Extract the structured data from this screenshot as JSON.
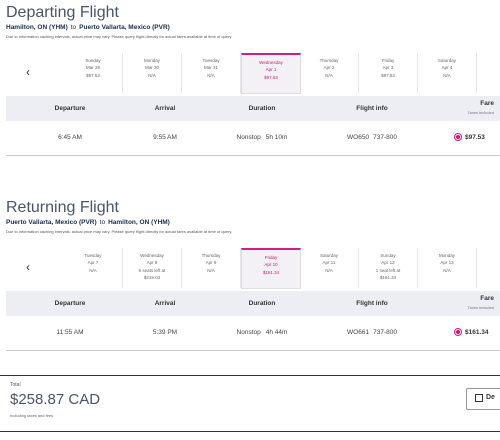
{
  "departing": {
    "title": "Departing Flight",
    "route": {
      "from": "Hamilton, ON (YHM)",
      "to_word": "to",
      "to": "Puerto Vallarta, Mexico (PVR)"
    },
    "disclaimer": "Due to information caching intervals, actual price may vary. Please query flight directly for actual fares available at time of query.",
    "selected": 3,
    "dates": [
      {
        "day": "Sunday",
        "date": "Mar 29",
        "lines": [
          "$97.53"
        ]
      },
      {
        "day": "Monday",
        "date": "Mar 30",
        "lines": [
          "N/A"
        ]
      },
      {
        "day": "Tuesday",
        "date": "Mar 31",
        "lines": [
          "N/A"
        ]
      },
      {
        "day": "Wednesday",
        "date": "Apr 1",
        "lines": [
          "$97.53"
        ]
      },
      {
        "day": "Thursday",
        "date": "Apr 2",
        "lines": [
          "N/A"
        ]
      },
      {
        "day": "Friday",
        "date": "Apr 3",
        "lines": [
          "$97.53"
        ]
      },
      {
        "day": "Saturday",
        "date": "Apr 4",
        "lines": [
          "N/A"
        ]
      }
    ],
    "headers": {
      "columns": [
        "Departure",
        "Arrival",
        "Duration",
        "Flight info"
      ],
      "fare": "Fare",
      "fare_note": "Taxes included"
    },
    "flight": {
      "departure": "6:45 AM",
      "arrival": "9:55 AM",
      "stops": "Nonstop",
      "duration": "5h 10m",
      "number": "WO650",
      "aircraft": "737-800",
      "fare": "$97.53"
    }
  },
  "returning": {
    "title": "Returning Flight",
    "route": {
      "from": "Puerto Vallarta, Mexico (PVR)",
      "to_word": "to",
      "to": "Hamilton, ON (YHM)"
    },
    "disclaimer": "Due to information caching intervals, actual price may vary. Please query flight directly for actual fares available at time of query.",
    "selected": 3,
    "dates": [
      {
        "day": "Tuesday",
        "date": "Apr 7",
        "lines": [
          "N/A"
        ]
      },
      {
        "day": "Wednesday",
        "date": "Apr 8",
        "lines": [
          "6 seats left at",
          "$219.03"
        ]
      },
      {
        "day": "Thursday",
        "date": "Apr 9",
        "lines": [
          "N/A"
        ]
      },
      {
        "day": "Friday",
        "date": "Apr 10",
        "lines": [
          "$161.34"
        ]
      },
      {
        "day": "Saturday",
        "date": "Apr 11",
        "lines": [
          "N/A"
        ]
      },
      {
        "day": "Sunday",
        "date": "Apr 12",
        "lines": [
          "1 seat left at",
          "$161.34"
        ]
      },
      {
        "day": "Monday",
        "date": "Apr 13",
        "lines": [
          "N/A"
        ]
      }
    ],
    "headers": {
      "columns": [
        "Departure",
        "Arrival",
        "Duration",
        "Flight info"
      ],
      "fare": "Fare",
      "fare_note": "Taxes included"
    },
    "flight": {
      "departure": "11:55 AM",
      "arrival": "5:39 PM",
      "stops": "Nonstop",
      "duration": "4h 44m",
      "number": "WO661",
      "aircraft": "737-800",
      "fare": "$161.34"
    }
  },
  "total": {
    "label": "Total",
    "amount": "$258.87 CAD",
    "note": "Including taxes and fees"
  },
  "button": "De"
}
